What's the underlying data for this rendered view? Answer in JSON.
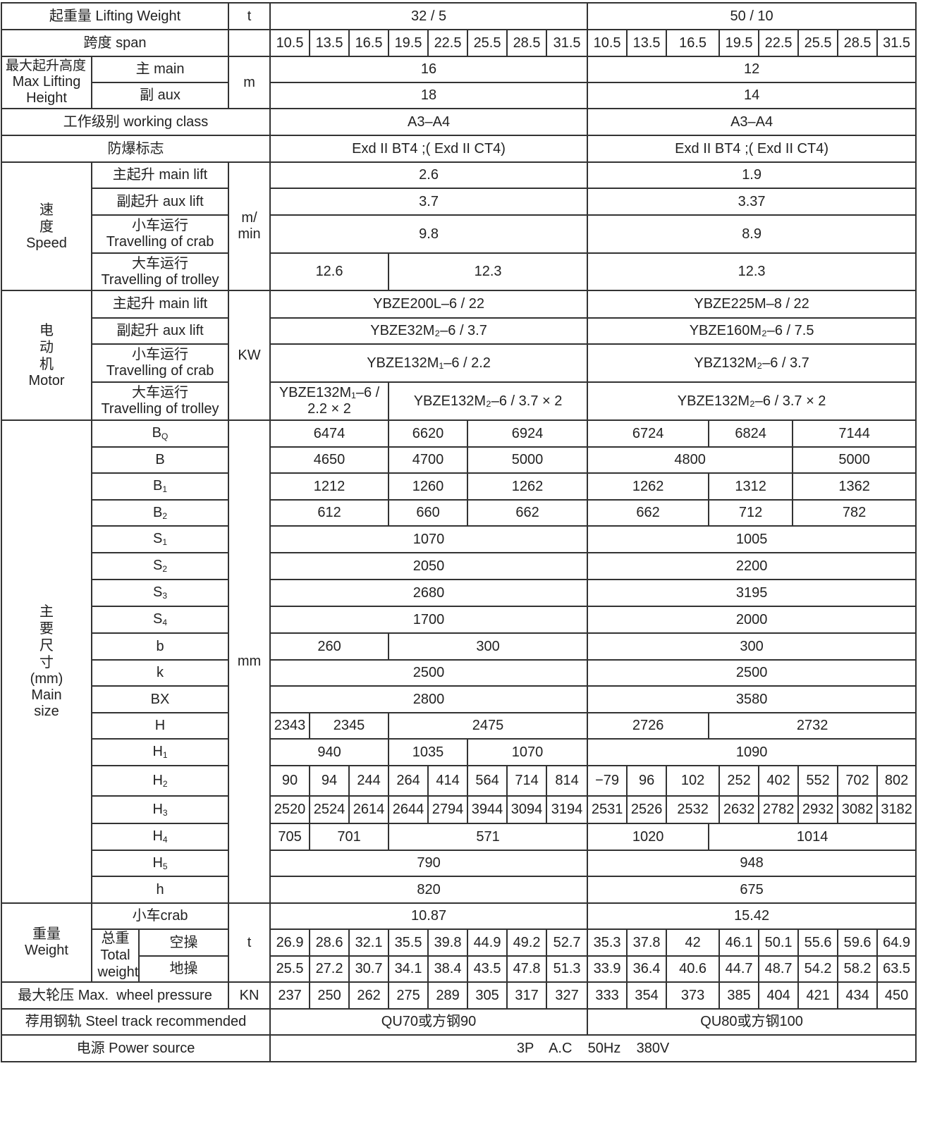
{
  "lifting_weight": {
    "label": "起重量 Lifting Weight",
    "unit": "t",
    "left": "32 / 5",
    "right": "50 / 10"
  },
  "span": {
    "label": "跨度 span",
    "values": [
      "10.5",
      "13.5",
      "16.5",
      "19.5",
      "22.5",
      "25.5",
      "28.5",
      "31.5",
      "10.5",
      "13.5",
      "16.5",
      "19.5",
      "22.5",
      "25.5",
      "28.5",
      "31.5"
    ]
  },
  "max_height": {
    "label_cn": "最大起升高度",
    "label_en": "Max Lifting Height",
    "unit": "m",
    "main": {
      "label": "主 main",
      "left": "16",
      "right": "12"
    },
    "aux": {
      "label": "副 aux",
      "left": "18",
      "right": "14"
    }
  },
  "working_class": {
    "label": "工作级别 working class",
    "left": "A3–A4",
    "right": "A3–A4"
  },
  "explosion_mark": {
    "label": "防爆标志",
    "left": "Exd II BT4 ;( Exd II CT4)",
    "right": "Exd II BT4 ;( Exd II CT4)"
  },
  "speed": {
    "label_cn": "速度",
    "label_en": "Speed",
    "unit": "m/ min",
    "main_lift": {
      "label": "主起升  main lift",
      "left": "2.6",
      "right": "1.9"
    },
    "aux_lift": {
      "label": "副起升 aux lift",
      "left": "3.7",
      "right": "3.37"
    },
    "crab": {
      "label_cn": "小车运行",
      "label_en": "Travelling of crab",
      "left": "9.8",
      "right": "8.9"
    },
    "trolley": {
      "label_cn": "大车运行",
      "label_en": "Travelling of trolley",
      "values": [
        "12.6",
        "12.3",
        "12.3"
      ]
    }
  },
  "motor": {
    "label_cn": "电动机",
    "label_en": "Motor",
    "unit": "KW",
    "main_lift": {
      "label": "主起升  main lift",
      "left": "YBZE200L–6 / 22",
      "right": "YBZE225M–8 / 22"
    },
    "aux_lift": {
      "label": "副起升 aux lift",
      "left": "YBZE32M₂–6 / 3.7",
      "right": "YBZE160M₂–6 / 7.5"
    },
    "crab": {
      "label_cn": "小车运行",
      "label_en": "Travelling of crab",
      "left": "YBZE132M₁–6 / 2.2",
      "right": "YBZ132M₂–6 / 3.7"
    },
    "trolley": {
      "label_cn": "大车运行",
      "label_en": "Travelling of trolley",
      "values": [
        "YBZE132M₁–6 / 2.2 × 2",
        "YBZE132M₂–6 / 3.7 × 2",
        "YBZE132M₂–6 / 3.7 × 2"
      ]
    }
  },
  "main_size": {
    "label_cn": "主要尺寸",
    "label_unit": "(mm)",
    "label_en": "Main size",
    "unit": "mm",
    "bq": {
      "sym": "B",
      "sub": "Q",
      "values": [
        "6474",
        "6620",
        "6924",
        "6724",
        "6824",
        "7144"
      ]
    },
    "b_big": {
      "sym": "B",
      "values": [
        "4650",
        "4700",
        "5000",
        "4800",
        "5000"
      ]
    },
    "b1": {
      "sym": "B",
      "sub": "1",
      "values": [
        "1212",
        "1260",
        "1262",
        "1262",
        "1312",
        "1362"
      ]
    },
    "b2": {
      "sym": "B",
      "sub": "2",
      "values": [
        "612",
        "660",
        "662",
        "662",
        "712",
        "782"
      ]
    },
    "s1": {
      "sym": "S",
      "sub": "1",
      "values": [
        "1070",
        "1005"
      ]
    },
    "s2": {
      "sym": "S",
      "sub": "2",
      "values": [
        "2050",
        "2200"
      ]
    },
    "s3": {
      "sym": "S",
      "sub": "3",
      "values": [
        "2680",
        "3195"
      ]
    },
    "s4": {
      "sym": "S",
      "sub": "4",
      "values": [
        "1700",
        "2000"
      ]
    },
    "b_small": {
      "sym": "b",
      "values": [
        "260",
        "300",
        "300"
      ]
    },
    "k": {
      "sym": "k",
      "values": [
        "2500",
        "2500"
      ]
    },
    "bx": {
      "sym": "BX",
      "values": [
        "2800",
        "3580"
      ]
    },
    "h_big": {
      "sym": "H",
      "values": [
        "2343",
        "2345",
        "2475",
        "2726",
        "2732"
      ]
    },
    "h1": {
      "sym": "H",
      "sub": "1",
      "values": [
        "940",
        "1035",
        "1070",
        "1090"
      ]
    },
    "h2": {
      "sym": "H",
      "sub": "2",
      "values": [
        "90",
        "94",
        "244",
        "264",
        "414",
        "564",
        "714",
        "814",
        "−79",
        "96",
        "102",
        "252",
        "402",
        "552",
        "702",
        "802"
      ]
    },
    "h3": {
      "sym": "H",
      "sub": "3",
      "values": [
        "2520",
        "2524",
        "2614",
        "2644",
        "2794",
        "3944",
        "3094",
        "3194",
        "2531",
        "2526",
        "2532",
        "2632",
        "2782",
        "2932",
        "3082",
        "3182"
      ]
    },
    "h4": {
      "sym": "H",
      "sub": "4",
      "values": [
        "705",
        "701",
        "571",
        "1020",
        "1014"
      ]
    },
    "h5": {
      "sym": "H",
      "sub": "5",
      "values": [
        "790",
        "948"
      ]
    },
    "h_small": {
      "sym": "h",
      "values": [
        "820",
        "675"
      ]
    }
  },
  "weight": {
    "label_cn": "重量",
    "label_en": "Weight",
    "unit": "t",
    "crab": {
      "label": "小车crab",
      "left": "10.87",
      "right": "15.42"
    },
    "total": {
      "label_cn": "总重",
      "label_en": "Total weight",
      "empty": {
        "label": "空操",
        "values": [
          "26.9",
          "28.6",
          "32.1",
          "35.5",
          "39.8",
          "44.9",
          "49.2",
          "52.7",
          "35.3",
          "37.8",
          "42",
          "46.1",
          "50.1",
          "55.6",
          "59.6",
          "64.9"
        ]
      },
      "ground": {
        "label": "地操",
        "values": [
          "25.5",
          "27.2",
          "30.7",
          "34.1",
          "38.4",
          "43.5",
          "47.8",
          "51.3",
          "33.9",
          "36.4",
          "40.6",
          "44.7",
          "48.7",
          "54.2",
          "58.2",
          "63.5"
        ]
      }
    }
  },
  "wheel_pressure": {
    "label": "最大轮压 Max.  wheel pressure",
    "unit": "KN",
    "values": [
      "237",
      "250",
      "262",
      "275",
      "289",
      "305",
      "317",
      "327",
      "333",
      "354",
      "373",
      "385",
      "404",
      "421",
      "434",
      "450"
    ]
  },
  "steel_track": {
    "label": "荐用钢轨 Steel track recommended",
    "left": "QU70或方钢90",
    "right": "QU80或方钢100"
  },
  "power": {
    "label": "电源 Power source",
    "value": "3P    A.C    50Hz    380V"
  }
}
